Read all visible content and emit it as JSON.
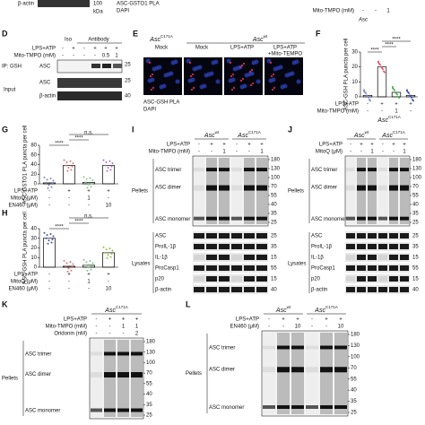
{
  "top": {
    "beta_actin": "β-actin",
    "marker": 100,
    "kda": "kDa",
    "pla": "ASC-GSTO1 PLA",
    "dapi": "DAPI",
    "mito": "Mito-TMPO (mM)",
    "signs": [
      "-",
      "-",
      "1"
    ],
    "asc": "Asc"
  },
  "D": {
    "label": "D",
    "iso": "Iso",
    "antibody": "Antibody",
    "rows": [
      {
        "label": "LPS+ATP",
        "signs": [
          "-",
          "+",
          "-",
          "+",
          "+",
          "+"
        ]
      },
      {
        "label": "Mito-TMPO (mM)",
        "signs": [
          "-",
          "-",
          "-",
          "-",
          "0.5",
          "1"
        ]
      }
    ],
    "ip": "IP: GSH",
    "asc": "ASC",
    "input": "Input",
    "beta_actin": "β-actin",
    "markers": [
      25,
      25,
      40
    ]
  },
  "E": {
    "label": "E",
    "asc": "Asc",
    "mut": "C171A",
    "wt": "wt",
    "captions": [
      "Mock",
      "Mock",
      "LPS+ATP",
      "LPS+ATP",
      "+Mito-TEMPO"
    ],
    "legend": [
      "ASC-GSH PLA",
      "DAPI"
    ]
  },
  "chart_data": [
    {
      "panel": "F",
      "type": "bar",
      "y_label": "ASC-GSH PLA puncta per cell",
      "values": [
        1,
        20,
        3,
        1
      ],
      "ylim": [
        0,
        30
      ],
      "yticks": [
        0,
        10,
        20,
        30
      ],
      "colors": [
        "#7986cb",
        "#e8566b",
        "#4caf50",
        "#3f51b5"
      ],
      "annotations": [
        "****",
        "****",
        "****"
      ],
      "rows": [
        {
          "label": "LPS+ATP",
          "signs": [
            "-",
            "+",
            "+",
            "+"
          ]
        },
        {
          "label": "Mito-TMPO (mM)",
          "signs": [
            "-",
            "-",
            "1",
            "-"
          ]
        }
      ],
      "genotype": {
        "asc": "Asc",
        "mut": "C171A"
      }
    },
    {
      "panel": "G",
      "type": "bar",
      "y_label": "ASC-GSTO1 PLA puncta per cell",
      "values": [
        2,
        38,
        3,
        38
      ],
      "ylim": [
        0,
        80
      ],
      "yticks": [
        0,
        20,
        40,
        60,
        80
      ],
      "colors": [
        "#7986cb",
        "#e57373",
        "#81c784",
        "#ba68c8"
      ],
      "annotations": [
        "****",
        "****",
        "n.s."
      ],
      "rows": [
        {
          "label": "LPS+ATP",
          "signs": [
            "-",
            "+",
            "+",
            "+"
          ]
        },
        {
          "label": "MitoQ (μM)",
          "signs": [
            "-",
            "-",
            "1",
            "-"
          ]
        },
        {
          "label": "EN460 (μM)",
          "signs": [
            "-",
            "-",
            "-",
            "10"
          ]
        }
      ]
    },
    {
      "panel": "H",
      "type": "bar",
      "y_label": "ASC-GSH PLA puncta per cell",
      "values": [
        30,
        1,
        2,
        15
      ],
      "ylim": [
        0,
        40
      ],
      "yticks": [
        0,
        10,
        20,
        30,
        40
      ],
      "colors": [
        "#3f51b5",
        "#e57373",
        "#81c784",
        "#8bc34a"
      ],
      "annotations": [
        "****",
        "****",
        "n.s."
      ],
      "rows": [
        {
          "label": "LPS+ATP",
          "signs": [
            "-",
            "+",
            "+",
            "+"
          ]
        },
        {
          "label": "MitoQ (μM)",
          "signs": [
            "-",
            "-",
            "1",
            "-"
          ]
        },
        {
          "label": "EN460 (μM)",
          "signs": [
            "-",
            "-",
            "-",
            "10"
          ]
        }
      ]
    }
  ],
  "I": {
    "label": "I",
    "asc": "Asc",
    "wt": "wt",
    "mut": "C171A",
    "rows": [
      {
        "label": "LPS+ATP",
        "signs": [
          "-",
          "+",
          "+",
          "-",
          "+",
          "+"
        ]
      },
      {
        "label": "Mito-TMPO (mM)",
        "signs": [
          "-",
          "-",
          "1",
          "-",
          "-",
          "1"
        ]
      }
    ],
    "pellets": "Pellets",
    "pellet_bands": [
      "ASC trimer",
      "ASC dimer",
      "ASC monomer"
    ],
    "pellet_markers": [
      180,
      130,
      100,
      70,
      55,
      40,
      35,
      25
    ],
    "lysates": "Lysates",
    "lysate_bands": [
      "ASC",
      "ProIL-1β",
      "IL-1β",
      "ProCasp1",
      "p20",
      "β-actin"
    ],
    "lysate_markers": [
      25,
      35,
      15,
      55,
      15,
      40
    ]
  },
  "J": {
    "label": "J",
    "asc": "Asc",
    "wt": "wt",
    "mut": "C171A",
    "rows": [
      {
        "label": "LPS+ATP",
        "signs": [
          "-",
          "+",
          "+",
          "-",
          "+",
          "+"
        ]
      },
      {
        "label": "MitoQ (μM)",
        "signs": [
          "-",
          "-",
          "1",
          "-",
          "-",
          "1"
        ]
      }
    ],
    "pellets": "Pellets",
    "pellet_bands": [
      "ASC trimer",
      "ASC dimer",
      "ASC monomer"
    ],
    "pellet_markers": [
      180,
      130,
      100,
      70,
      55,
      40,
      35,
      25
    ],
    "lysates": "Lysates",
    "lysate_bands": [
      "ASC",
      "ProIL-1β",
      "IL-1β",
      "ProCasp1",
      "p20",
      "β-actin"
    ],
    "lysate_markers": [
      25,
      35,
      15,
      55,
      15,
      40
    ]
  },
  "K": {
    "label": "K",
    "asc": "Asc",
    "mut": "C171A",
    "rows": [
      {
        "label": "LPS+ATP",
        "signs": [
          "-",
          "+",
          "+",
          "+"
        ]
      },
      {
        "label": "Mito-TMPO (mM)",
        "signs": [
          "-",
          "-",
          "1",
          "1"
        ]
      },
      {
        "label": "Oridonin (nM)",
        "signs": [
          "-",
          "-",
          "-",
          "2"
        ]
      }
    ],
    "pellets": "Pellets",
    "pellet_bands": [
      "ASC trimer",
      "ASC dimer",
      "ASC monomer"
    ],
    "pellet_markers": [
      180,
      130,
      100,
      70,
      55,
      40,
      35,
      25
    ]
  },
  "L": {
    "label": "L",
    "asc": "Asc",
    "wt": "wt",
    "mut": "C171A",
    "rows": [
      {
        "label": "LPS+ATP",
        "signs": [
          "-",
          "+",
          "+",
          "-",
          "+",
          "+"
        ]
      },
      {
        "label": "EN460 (μM)",
        "signs": [
          "-",
          "-",
          "10",
          "-",
          "-",
          "10"
        ]
      }
    ],
    "pellets": "Pellets",
    "pellet_bands": [
      "ASC trimer",
      "ASC dimer",
      "ASC monomer"
    ],
    "pellet_markers": [
      180,
      130,
      100,
      70,
      55,
      40,
      35,
      25
    ]
  }
}
